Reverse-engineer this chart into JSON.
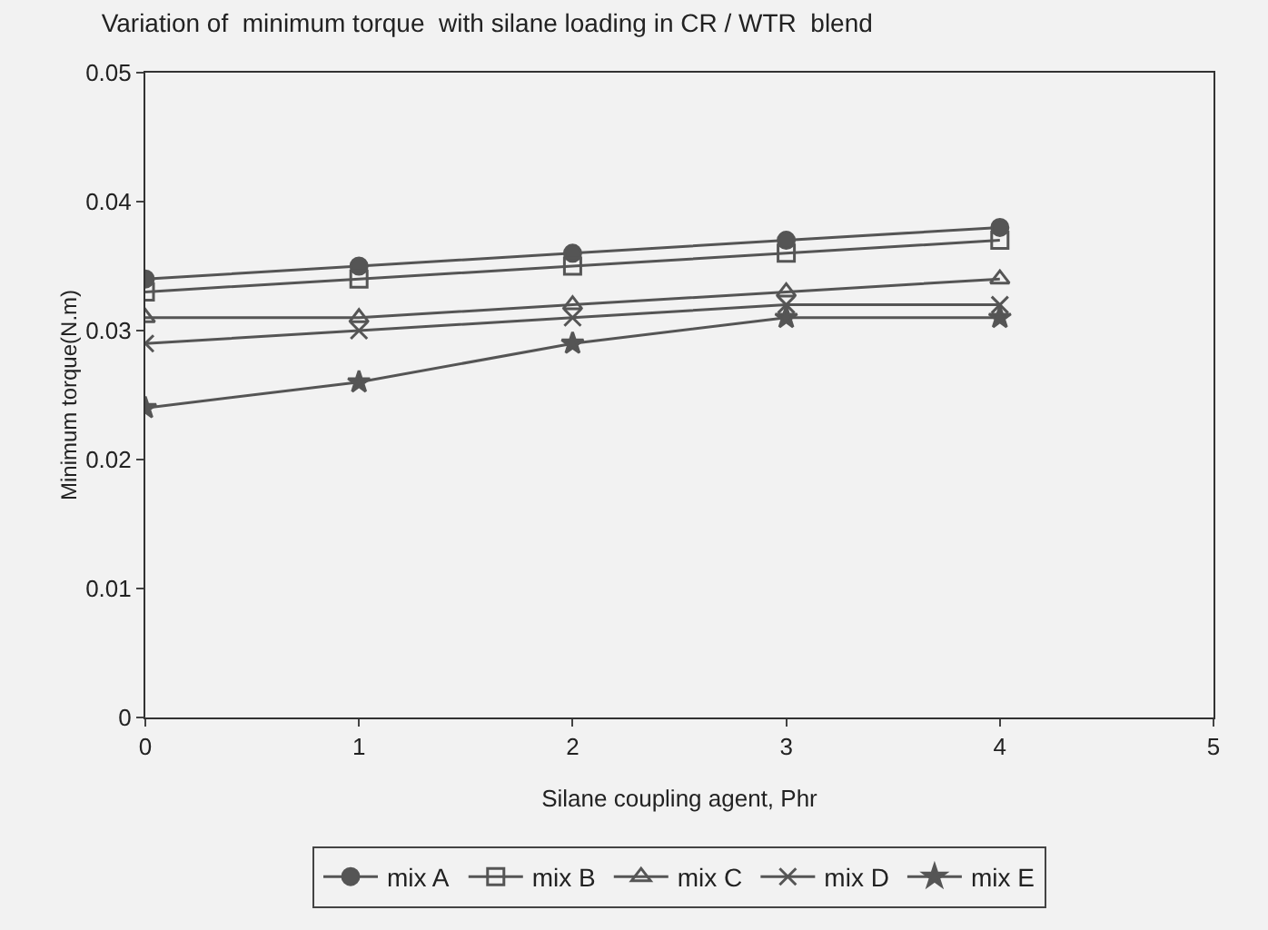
{
  "chart_data": {
    "type": "line",
    "title": "Variation of  minimum torque  with silane loading in CR / WTR  blend",
    "xlabel": "Silane coupling agent, Phr",
    "ylabel": "Minimum torque(N.m)",
    "x": [
      0,
      1,
      2,
      3,
      4
    ],
    "series": [
      {
        "name": "mix A",
        "color": "#555555",
        "marker": "circle",
        "values": [
          0.034,
          0.035,
          0.036,
          0.037,
          0.038
        ]
      },
      {
        "name": "mix B",
        "color": "#555555",
        "marker": "square",
        "values": [
          0.033,
          0.034,
          0.035,
          0.036,
          0.037
        ]
      },
      {
        "name": "mix C",
        "color": "#555555",
        "marker": "triangle",
        "values": [
          0.031,
          0.031,
          0.032,
          0.033,
          0.034
        ]
      },
      {
        "name": "mix D",
        "color": "#555555",
        "marker": "cross",
        "values": [
          0.029,
          0.03,
          0.031,
          0.032,
          0.032
        ]
      },
      {
        "name": "mix E",
        "color": "#555555",
        "marker": "star",
        "values": [
          0.024,
          0.026,
          0.029,
          0.031,
          0.031
        ]
      }
    ],
    "xlim": [
      0,
      5
    ],
    "xticks": [
      0,
      1,
      2,
      3,
      4,
      5
    ],
    "ylim": [
      0,
      0.05
    ],
    "yticks": [
      0,
      0.01,
      0.02,
      0.03,
      0.04,
      0.05
    ],
    "grid": false,
    "legend": "bottom",
    "line_style": "solid"
  }
}
